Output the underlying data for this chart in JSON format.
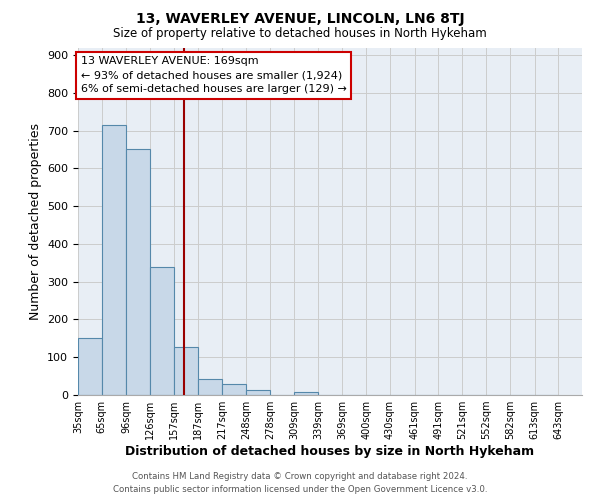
{
  "title": "13, WAVERLEY AVENUE, LINCOLN, LN6 8TJ",
  "subtitle": "Size of property relative to detached houses in North Hykeham",
  "xlabel": "Distribution of detached houses by size in North Hykeham",
  "ylabel": "Number of detached properties",
  "bin_labels": [
    "35sqm",
    "65sqm",
    "96sqm",
    "126sqm",
    "157sqm",
    "187sqm",
    "217sqm",
    "248sqm",
    "278sqm",
    "309sqm",
    "339sqm",
    "369sqm",
    "400sqm",
    "430sqm",
    "461sqm",
    "491sqm",
    "521sqm",
    "552sqm",
    "582sqm",
    "613sqm",
    "643sqm"
  ],
  "bin_edges": [
    35,
    65,
    96,
    126,
    157,
    187,
    217,
    248,
    278,
    309,
    339,
    369,
    400,
    430,
    461,
    491,
    521,
    552,
    582,
    613,
    643
  ],
  "bar_heights": [
    150,
    715,
    650,
    340,
    128,
    42,
    30,
    12,
    0,
    8,
    0,
    0,
    0,
    0,
    0,
    0,
    0,
    0,
    0,
    0
  ],
  "bar_color": "#c8d8e8",
  "bar_edge_color": "#5588aa",
  "property_line_x": 169,
  "property_line_color": "#990000",
  "annotation_line1": "13 WAVERLEY AVENUE: 169sqm",
  "annotation_line2": "← 93% of detached houses are smaller (1,924)",
  "annotation_line3": "6% of semi-detached houses are larger (129) →",
  "annotation_box_color": "#ffffff",
  "annotation_box_edge": "#cc0000",
  "ylim": [
    0,
    920
  ],
  "yticks": [
    0,
    100,
    200,
    300,
    400,
    500,
    600,
    700,
    800,
    900
  ],
  "grid_color": "#cccccc",
  "bg_color": "#e8eef5",
  "footer1": "Contains HM Land Registry data © Crown copyright and database right 2024.",
  "footer2": "Contains public sector information licensed under the Open Government Licence v3.0."
}
